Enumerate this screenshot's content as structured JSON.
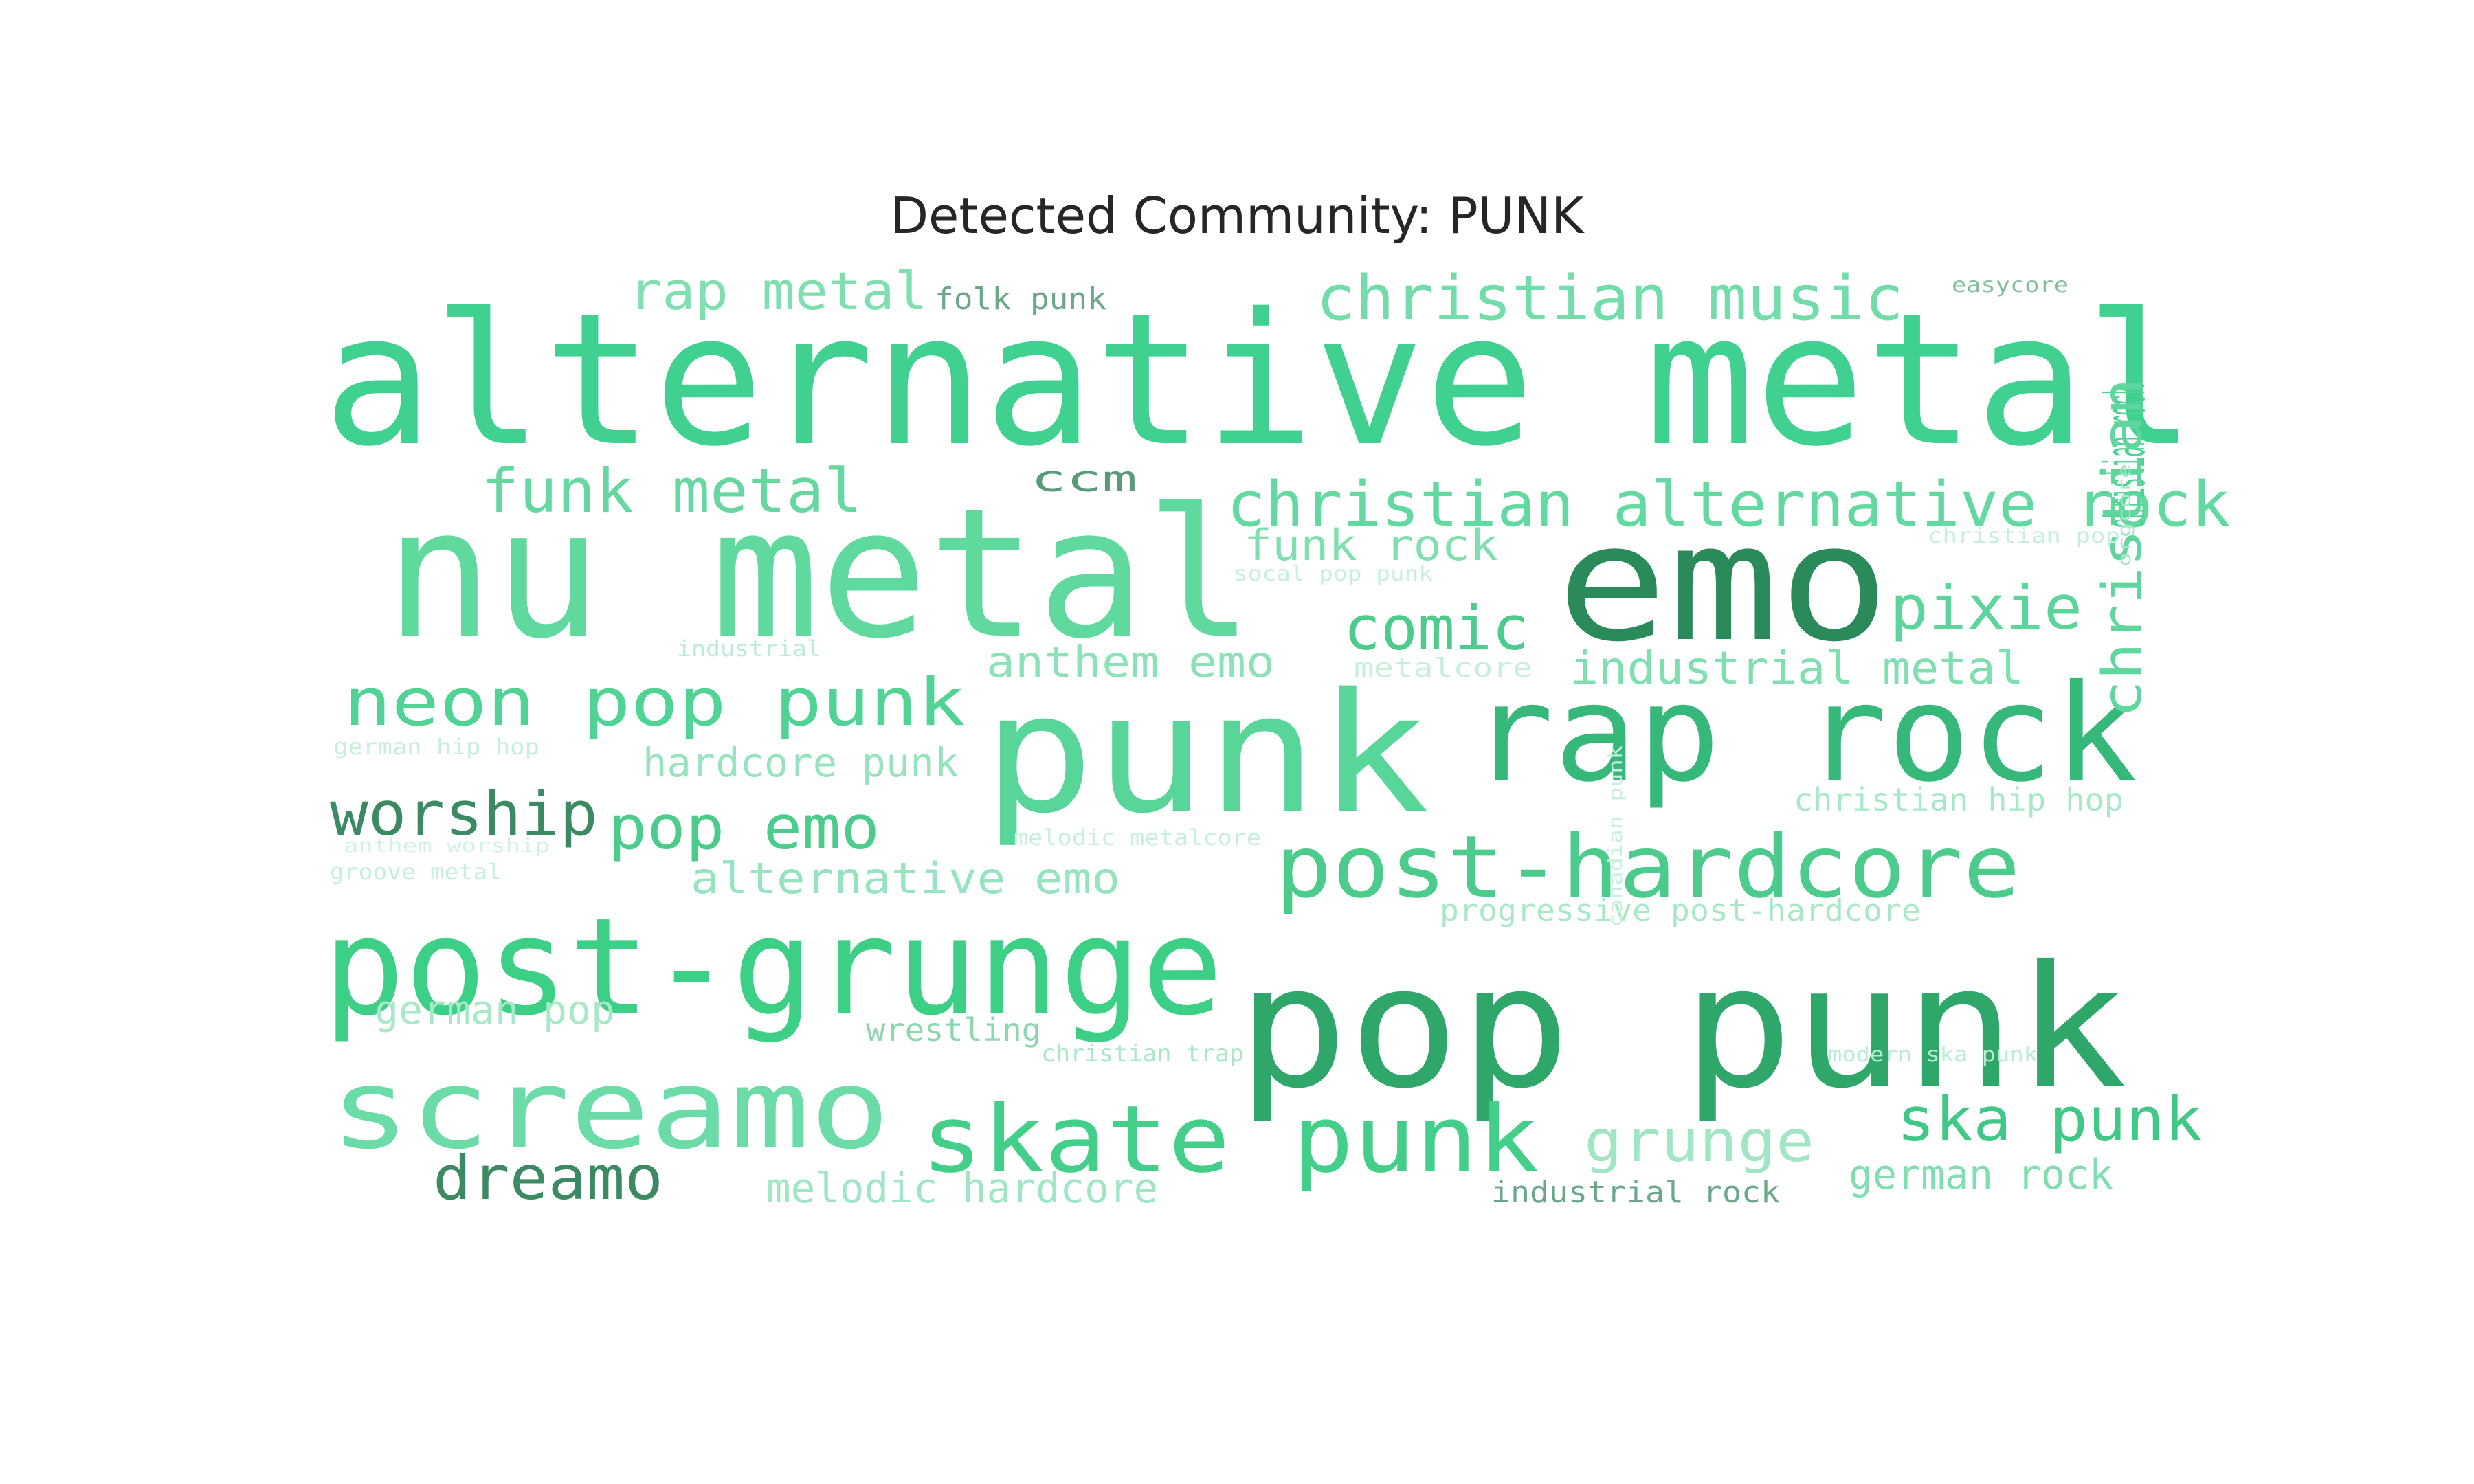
{
  "title": "Detected Community: PUNK",
  "words": [
    {
      "text": "alternative metal",
      "color": "#40d190"
    },
    {
      "text": "nu metal",
      "color": "#5fd99d"
    },
    {
      "text": "emo",
      "color": "#2a8a5a"
    },
    {
      "text": "punk",
      "color": "#58d599"
    },
    {
      "text": "rap rock",
      "color": "#35b87a"
    },
    {
      "text": "pop punk",
      "color": "#2fa76a"
    },
    {
      "text": "post-grunge",
      "color": "#3ccf86"
    },
    {
      "text": "screamo",
      "color": "#6bdca8"
    },
    {
      "text": "skate punk",
      "color": "#43cf8a"
    },
    {
      "text": "post-hardcore",
      "color": "#4ccc8c"
    },
    {
      "text": "christian alternative rock",
      "color": "#62d9a0"
    },
    {
      "text": "christian music",
      "color": "#72ddaa"
    },
    {
      "text": "rap metal",
      "color": "#7fdfb1"
    },
    {
      "text": "funk metal",
      "color": "#66d7a0"
    },
    {
      "text": "neon pop punk",
      "color": "#50d394"
    },
    {
      "text": "worship",
      "color": "#3c8a64"
    },
    {
      "text": "pop emo",
      "color": "#4ccc8c"
    },
    {
      "text": "comic",
      "color": "#4ccc8c"
    },
    {
      "text": "pixie",
      "color": "#5bd59b"
    },
    {
      "text": "christian rock",
      "color": "#4fd292"
    },
    {
      "text": "christian",
      "color": "#5fd69d"
    },
    {
      "text": "industrial metal",
      "color": "#7fdfb1"
    },
    {
      "text": "anthem emo",
      "color": "#8be2b8"
    },
    {
      "text": "hardcore punk",
      "color": "#96e4bf"
    },
    {
      "text": "alternative emo",
      "color": "#96e4bf"
    },
    {
      "text": "grunge",
      "color": "#a0e6c4"
    },
    {
      "text": "ska punk",
      "color": "#40c887"
    },
    {
      "text": "dreamo",
      "color": "#3c8a64"
    },
    {
      "text": "melodic hardcore",
      "color": "#a0e6c4"
    },
    {
      "text": "german rock",
      "color": "#7fdfb1"
    },
    {
      "text": "german pop",
      "color": "#a8e8c9"
    },
    {
      "text": "ccm",
      "color": "#5a9a7a"
    },
    {
      "text": "funk rock",
      "color": "#7fdfb1"
    },
    {
      "text": "folk punk",
      "color": "#6aa889"
    },
    {
      "text": "easycore",
      "color": "#7fbf9f"
    },
    {
      "text": "wrestling",
      "color": "#8bd7b0"
    },
    {
      "text": "industrial rock",
      "color": "#6aa889"
    },
    {
      "text": "progressive post-hardcore",
      "color": "#a8e8c9"
    },
    {
      "text": "christian hip hop",
      "color": "#a8e8c9"
    },
    {
      "text": "christian pop",
      "color": "#c6f0dc"
    },
    {
      "text": "socal pop punk",
      "color": "#c6f0dc"
    },
    {
      "text": "metalcore",
      "color": "#c6f0dc"
    },
    {
      "text": "industrial",
      "color": "#b8ecd3"
    },
    {
      "text": "german hip hop",
      "color": "#c6f0dc"
    },
    {
      "text": "anthem worship",
      "color": "#d2f3e3"
    },
    {
      "text": "groove metal",
      "color": "#c6f0dc"
    },
    {
      "text": "melodic metalcore",
      "color": "#c6f0dc"
    },
    {
      "text": "christian trap",
      "color": "#a8e8c9"
    },
    {
      "text": "modern ska punk",
      "color": "#b8ecd3"
    },
    {
      "text": "canadian punk",
      "color": "#c6f0dc"
    },
    {
      "text": "orgcore",
      "color": "#a8e8c9"
    }
  ]
}
